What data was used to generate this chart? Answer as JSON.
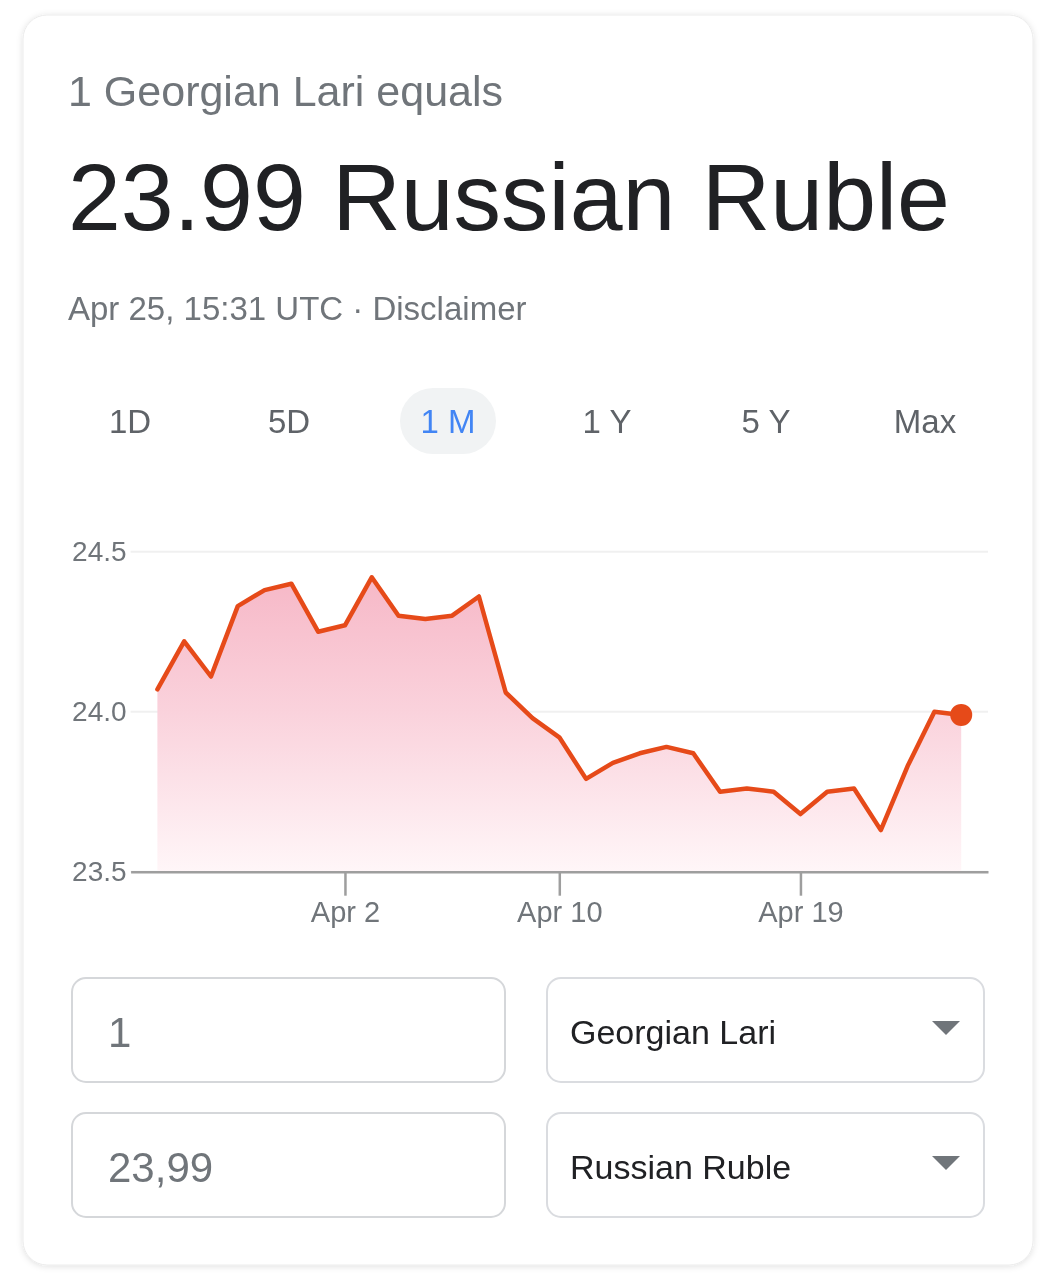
{
  "chart_data": {
    "type": "area",
    "title": "23.99 Russian Ruble",
    "subtitle": "1 Georgian Lari equals",
    "annotations": [
      "Apr 25, 15:31 UTC · Disclaimer",
      "1D",
      "5D",
      "1 M",
      "1 Y",
      "5 Y",
      "Max",
      "1",
      "Georgian Lari",
      "23,99",
      "Russian Ruble"
    ],
    "x": [
      "--03-26",
      "--03-27",
      "--03-28",
      "--03-29",
      "--03-30",
      "--03-31",
      "--04-01",
      "--04-02",
      "--04-03",
      "--04-04",
      "--04-05",
      "--04-06",
      "--04-07",
      "--04-08",
      "--04-09",
      "--04-10",
      "--04-11",
      "--04-12",
      "--04-13",
      "--04-14",
      "--04-15",
      "--04-16",
      "--04-17",
      "--04-18",
      "--04-19",
      "--04-20",
      "--04-21",
      "--04-22",
      "--04-23",
      "--04-24",
      "--04-25"
    ],
    "series": [
      {
        "color": "#e64a19",
        "values": [
          24.07,
          24.22,
          24.11,
          24.33,
          24.38,
          24.4,
          24.25,
          24.27,
          24.42,
          24.3,
          24.29,
          24.3,
          24.36,
          24.06,
          23.98,
          23.92,
          23.79,
          23.84,
          23.87,
          23.89,
          23.87,
          23.75,
          23.76,
          23.75,
          23.68,
          23.75,
          23.76,
          23.63,
          23.83,
          24.0,
          23.99
        ]
      },
      {
        "type": "scatter",
        "color": "#e64a19",
        "marker": "circle",
        "x": [
          "--04-25"
        ],
        "values": [
          23.99
        ]
      }
    ],
    "xlim": [
      "--03-25",
      "--04-26"
    ],
    "xticks": [
      {
        "value": "--04-02",
        "label": "Apr 2"
      },
      {
        "value": "--04-10",
        "label": "Apr 10"
      },
      {
        "value": "--04-19",
        "label": "Apr 19"
      }
    ],
    "ylim": [
      23.5,
      24.5
    ],
    "yticks": [
      23.5,
      {
        "value": 24,
        "label": "24.0"
      },
      24.5
    ],
    "grid": "y",
    "line_style": "solid"
  }
}
